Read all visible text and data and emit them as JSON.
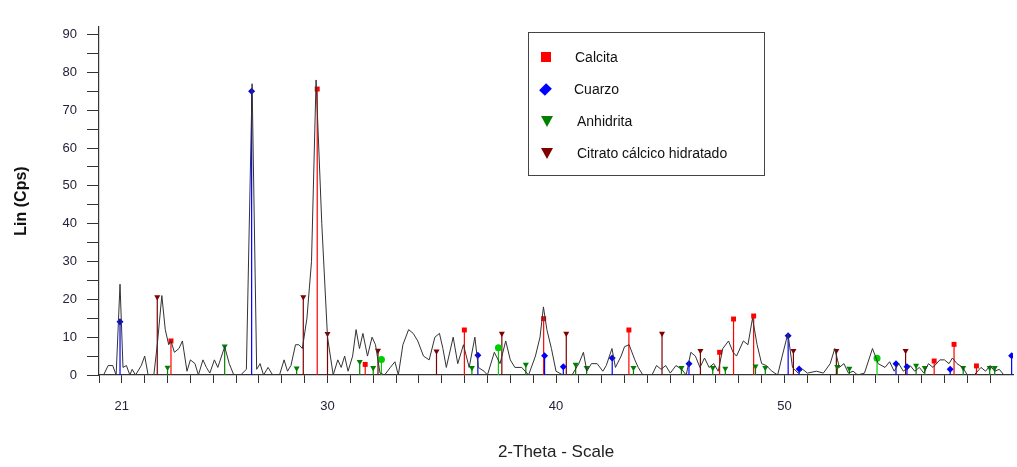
{
  "chart_data": {
    "type": "line",
    "xlabel": "2-Theta - Scale",
    "ylabel": "Lin (Cps)",
    "xlim": [
      20,
      60
    ],
    "ylim": [
      0,
      92
    ],
    "xticks": [
      {
        "value": 20,
        "label": null
      },
      21,
      {
        "value": 22,
        "label": null
      },
      {
        "value": 23,
        "label": null
      },
      {
        "value": 24,
        "label": null
      },
      {
        "value": 25,
        "label": null
      },
      {
        "value": 26,
        "label": null
      },
      {
        "value": 27,
        "label": null
      },
      {
        "value": 28,
        "label": null
      },
      {
        "value": 29,
        "label": null
      },
      30,
      {
        "value": 31,
        "label": null
      },
      {
        "value": 32,
        "label": null
      },
      {
        "value": 33,
        "label": null
      },
      {
        "value": 34,
        "label": null
      },
      {
        "value": 35,
        "label": null
      },
      {
        "value": 36,
        "label": null
      },
      {
        "value": 37,
        "label": null
      },
      {
        "value": 38,
        "label": null
      },
      {
        "value": 39,
        "label": null
      },
      40,
      {
        "value": 41,
        "label": null
      },
      {
        "value": 42,
        "label": null
      },
      {
        "value": 43,
        "label": null
      },
      {
        "value": 44,
        "label": null
      },
      {
        "value": 45,
        "label": null
      },
      {
        "value": 46,
        "label": null
      },
      {
        "value": 47,
        "label": null
      },
      {
        "value": 48,
        "label": null
      },
      {
        "value": 49,
        "label": null
      },
      50,
      {
        "value": 51,
        "label": null
      },
      {
        "value": 52,
        "label": null
      },
      {
        "value": 53,
        "label": null
      },
      {
        "value": 54,
        "label": null
      },
      {
        "value": 55,
        "label": null
      },
      {
        "value": 56,
        "label": null
      },
      {
        "value": 57,
        "label": null
      },
      {
        "value": 58,
        "label": null
      },
      {
        "value": 59,
        "label": null
      }
    ],
    "yticks": [
      0,
      {
        "value": 5,
        "label": null
      },
      10,
      {
        "value": 15,
        "label": null
      },
      20,
      {
        "value": 25,
        "label": null
      },
      30,
      {
        "value": 35,
        "label": null
      },
      40,
      {
        "value": 45,
        "label": null
      },
      50,
      {
        "value": 55,
        "label": null
      },
      60,
      {
        "value": 65,
        "label": null
      },
      70,
      {
        "value": 75,
        "label": null
      },
      80,
      {
        "value": 85,
        "label": null
      },
      90
    ],
    "grid": false,
    "legend": "top right",
    "series": [
      {
        "type": "line",
        "color": "#333333",
        "marker": "none",
        "x": [
          20.2,
          20.4,
          20.6,
          20.75,
          20.92,
          21.05,
          21.2,
          21.35,
          21.45,
          21.6,
          21.85,
          22.0,
          22.15,
          22.4,
          22.55,
          22.75,
          22.9,
          23.05,
          23.15,
          23.3,
          23.5,
          23.65,
          23.85,
          24.0,
          24.2,
          24.35,
          24.55,
          24.7,
          24.85,
          25.05,
          25.2,
          25.5,
          25.7,
          25.9,
          26.2,
          26.45,
          26.7,
          26.9,
          27.05,
          27.2,
          27.4,
          27.6,
          27.9,
          28.1,
          28.25,
          28.4,
          28.6,
          28.75,
          28.9,
          29.1,
          29.3,
          29.5,
          29.75,
          30.0,
          30.25,
          30.45,
          30.6,
          30.75,
          30.9,
          31.1,
          31.25,
          31.4,
          31.55,
          31.75,
          31.95,
          32.1,
          32.3,
          32.5,
          32.75,
          32.95,
          33.1,
          33.3,
          33.55,
          33.75,
          33.95,
          34.2,
          34.45,
          34.7,
          34.9,
          35.05,
          35.2,
          35.5,
          35.7,
          35.95,
          36.2,
          36.45,
          36.6,
          36.85,
          37.0,
          37.3,
          37.55,
          37.8,
          38.0,
          38.2,
          38.5,
          38.8,
          39.1,
          39.3,
          39.45,
          39.6,
          39.8,
          40.0,
          40.3,
          40.7,
          41.0,
          41.2,
          41.35,
          41.55,
          41.8,
          42.05,
          42.2,
          42.45,
          42.6,
          42.85,
          43.0,
          43.2,
          43.45,
          43.6,
          43.8,
          44.2,
          44.4,
          44.6,
          44.8,
          45.0,
          45.25,
          45.5,
          45.7,
          45.9,
          46.1,
          46.3,
          46.5,
          46.7,
          46.9,
          47.1,
          47.3,
          47.55,
          47.75,
          47.9,
          48.2,
          48.4,
          48.6,
          48.8,
          49.0,
          49.2,
          49.45,
          49.7,
          49.9,
          50.15,
          50.35,
          50.6,
          50.8,
          51.0,
          51.4,
          51.7,
          52.0,
          52.2,
          52.4,
          52.6,
          52.8,
          53.0,
          53.2,
          53.5,
          53.85,
          54.1,
          54.4,
          54.6,
          54.8,
          55.0,
          55.2,
          55.5,
          55.7,
          55.9,
          56.1,
          56.3,
          56.5,
          56.8,
          57.0,
          57.2,
          57.35,
          57.55,
          57.8,
          58.0,
          58.3,
          58.6,
          58.8,
          59.0,
          59.2,
          59.4,
          59.6,
          60.0
        ],
        "values": [
          0,
          2.5,
          2.5,
          0,
          24,
          2,
          2.5,
          0,
          1.5,
          0,
          2.5,
          5,
          0,
          0,
          8,
          21,
          12,
          8,
          9,
          6,
          7,
          9,
          1,
          4,
          3,
          0,
          4,
          2,
          0.5,
          4,
          2,
          7.5,
          3,
          0,
          0,
          1.5,
          77,
          1.5,
          3,
          0,
          2,
          0,
          0,
          4,
          1,
          2.5,
          8,
          8,
          7,
          15,
          30,
          78,
          40,
          10,
          0,
          4,
          2,
          5,
          1,
          5,
          12,
          7,
          11,
          5,
          10,
          8,
          0.5,
          0,
          2,
          3.5,
          0,
          8,
          12,
          11,
          9,
          5,
          4,
          10,
          11,
          7,
          2,
          10,
          3,
          8,
          2,
          10,
          2,
          1,
          0,
          6,
          3,
          9,
          4,
          2,
          2,
          0,
          5,
          10,
          18,
          12,
          7,
          1,
          0,
          0,
          3,
          6,
          1,
          3,
          3,
          1,
          2.5,
          7,
          2,
          5,
          7.5,
          8,
          4,
          2,
          0,
          0,
          2.5,
          1.5,
          2.5,
          0.5,
          2.5,
          1.5,
          0,
          6,
          5,
          2,
          4.5,
          2,
          3,
          1,
          7,
          9,
          6,
          5,
          9,
          8,
          15,
          8,
          3,
          2.5,
          1,
          0,
          5,
          11,
          2,
          0.5,
          1.5,
          0.5,
          1,
          0.5,
          3,
          7,
          2,
          3,
          0.5,
          1,
          0,
          0.5,
          7,
          3,
          2,
          3.5,
          1,
          3,
          1,
          2.5,
          1,
          2,
          0.5,
          3,
          2,
          4,
          4,
          3,
          4.5,
          3,
          2,
          0,
          0,
          2,
          1,
          2.5,
          1,
          1.5,
          0,
          0
        ]
      },
      {
        "type": "lollipop",
        "name": "Calcita",
        "color": "#ff0000",
        "marker": "square",
        "x": [
          23.15,
          29.55,
          31.65,
          35.99,
          39.46,
          43.19,
          47.16,
          47.77,
          48.65,
          56.55,
          57.42,
          58.4
        ],
        "values": [
          9,
          75.6,
          2.8,
          11.9,
          14.9,
          11.9,
          6,
          14.8,
          15.6,
          3.7,
          8.1,
          2.4
        ]
      },
      {
        "type": "lollipop",
        "name": "Cuarzo",
        "color": "#0000ff",
        "marker": "diamond",
        "x": [
          20.92,
          26.68,
          36.58,
          39.5,
          40.32,
          42.46,
          45.82,
          50.16,
          50.64,
          54.88,
          55.36,
          57.25,
          59.94
        ],
        "values": [
          14.1,
          75,
          5.2,
          5.1,
          2.2,
          4.5,
          3,
          10.4,
          1.6,
          3,
          2.2,
          1.5,
          5.1
        ]
      },
      {
        "type": "lollipop",
        "name": "Anhidrita",
        "color": "#008000",
        "marker": "triangle",
        "x": [
          23.0,
          25.5,
          28.65,
          31.41,
          32.0,
          36.32,
          38.68,
          40.86,
          41.34,
          43.39,
          45.49,
          46.86,
          47.41,
          48.73,
          49.16,
          52.31,
          52.84,
          55.76,
          56.14,
          57.82,
          58.98,
          59.2
        ],
        "values": [
          2,
          7.6,
          1.8,
          3.5,
          1.9,
          1.9,
          2.8,
          2.8,
          1.9,
          1.9,
          1.9,
          1.9,
          1.7,
          2.3,
          1.9,
          2.2,
          1.7,
          2.5,
          1.9,
          1.9,
          1.9,
          1.9
        ]
      },
      {
        "type": "lollipop",
        "name": "Citrato cálcico hidratado",
        "color": "#800000",
        "marker": "triangle",
        "x": [
          22.55,
          28.94,
          30.0,
          32.21,
          34.77,
          37.63,
          40.45,
          44.64,
          46.32,
          50.39,
          52.27,
          55.3
        ],
        "values": [
          20.6,
          20.6,
          10.9,
          6.5,
          6.3,
          11,
          11,
          11,
          6.4,
          6.4,
          6.4,
          6.4
        ]
      },
      {
        "type": "lollipop",
        "color": "#00cc00",
        "marker": "circle",
        "x": [
          32.36,
          37.48,
          54.05
        ],
        "values": [
          4.1,
          7.2,
          4.4
        ]
      }
    ]
  }
}
